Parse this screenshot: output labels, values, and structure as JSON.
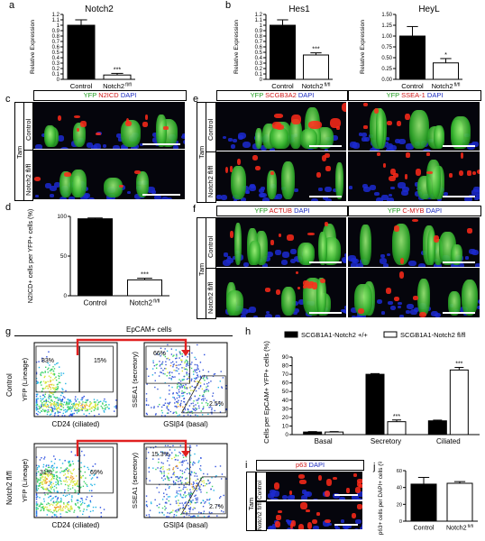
{
  "panels": {
    "a": {
      "letter": "a",
      "title": "Notch2",
      "ylabel": "Relative Expression"
    },
    "b": {
      "letter": "b",
      "title1": "Hes1",
      "title2": "HeyL",
      "ylabel": "Relative Expression"
    },
    "c": {
      "letter": "c",
      "stain": {
        "yfp": "YFP",
        "n2icd": "N2ICD",
        "dapi": "DAPI"
      },
      "tam": "Tam",
      "row1": "Control",
      "row2": "Notch2 fl/fl"
    },
    "d": {
      "letter": "d",
      "ylabel": "N2ICD+ cells per YFP+ cells (%)"
    },
    "e": {
      "letter": "e",
      "stain1": {
        "yfp": "YFP",
        "m": "SCGB3A2",
        "dapi": "DAPI"
      },
      "stain2": {
        "yfp": "YFP",
        "m": "SSEA-1",
        "dapi": "DAPI"
      },
      "tam": "Tam",
      "row1": "Control",
      "row2": "Notch2 fl/fl"
    },
    "f": {
      "letter": "f",
      "stain1": {
        "yfp": "YFP",
        "m": "ACTUB",
        "dapi": "DAPI"
      },
      "stain2": {
        "yfp": "YFP",
        "m": "C-MYB",
        "dapi": "DAPI"
      },
      "tam": "Tam",
      "row1": "Control",
      "row2": "Notch2 fl/fl"
    },
    "g": {
      "letter": "g",
      "header": "EpCAM+ cells",
      "row1": "Control",
      "row2": "Notch2 fl/fl",
      "x1": "CD24 (ciliated)",
      "y1": "YFP (Lineage)",
      "x2": "GSIβ4 (basal)",
      "y2": "SSEA1 (secretory)",
      "ctrl_pcts": {
        "a": "83%",
        "b": "15%",
        "c": "66%",
        "d": "2.5%"
      },
      "mut_pcts": {
        "a": "31%",
        "b": "69%",
        "c": "15.3%",
        "d": "2.7%"
      }
    },
    "h": {
      "letter": "h",
      "legend1": "SCGB1A1-Notch2 +/+",
      "legend2": "SCGB1A1-Notch2 fl/fl",
      "ylabel": "Cells per EpCAM+ YFP+ cells (%)"
    },
    "i": {
      "letter": "i",
      "stain": {
        "m": "p63",
        "dapi": "DAPI"
      },
      "tam": "Tam",
      "row1": "Control",
      "row2": "Notch2 fl/fl"
    },
    "j": {
      "letter": "j",
      "ylabel": "p63+ cells per DAPI+ cells (%)"
    }
  },
  "chart_data": [
    {
      "type": "bar",
      "id": "a",
      "title": "Notch2",
      "ylabel": "Relative Expression",
      "categories": [
        "Control",
        "Notch2 fl/fl"
      ],
      "values": [
        1.0,
        0.08
      ],
      "errors": [
        0.1,
        0.03
      ],
      "ylim": [
        0,
        1.2
      ],
      "yticks": [
        "0",
        "0.1",
        "0.2",
        "0.3",
        "0.4",
        "0.5",
        "0.6",
        "0.7",
        "0.8",
        "0.9",
        "1",
        "1.1",
        "1.2"
      ],
      "sig": [
        "",
        "***"
      ],
      "fill": [
        "#000000",
        "#ffffff"
      ]
    },
    {
      "type": "bar",
      "id": "b1",
      "title": "Hes1",
      "ylabel": "Relative Expression",
      "categories": [
        "Control",
        "Notch2 fl/fl"
      ],
      "values": [
        1.0,
        0.45
      ],
      "errors": [
        0.1,
        0.04
      ],
      "ylim": [
        0,
        1.2
      ],
      "yticks": [
        "0",
        "0.1",
        "0.2",
        "0.3",
        "0.4",
        "0.5",
        "0.6",
        "0.7",
        "0.8",
        "0.9",
        "1",
        "1.1",
        "1.2"
      ],
      "sig": [
        "",
        "***"
      ],
      "fill": [
        "#000000",
        "#ffffff"
      ]
    },
    {
      "type": "bar",
      "id": "b2",
      "title": "HeyL",
      "ylabel": "Relative Expression",
      "categories": [
        "Control",
        "Notch2 fl/fl"
      ],
      "values": [
        1.0,
        0.38
      ],
      "errors": [
        0.22,
        0.1
      ],
      "ylim": [
        0,
        1.5
      ],
      "yticks": [
        "0.00",
        "0.25",
        "0.50",
        "0.75",
        "1.00",
        "1.25",
        "1.50"
      ],
      "sig": [
        "",
        "*"
      ],
      "fill": [
        "#000000",
        "#ffffff"
      ]
    },
    {
      "type": "bar",
      "id": "d",
      "ylabel": "N2ICD+ cells per YFP+ cells (%)",
      "categories": [
        "Control",
        "Notch2 fl/fl"
      ],
      "values": [
        97,
        20
      ],
      "errors": [
        1,
        2
      ],
      "ylim": [
        0,
        100
      ],
      "yticks": [
        "0",
        "50",
        "100"
      ],
      "sig": [
        "",
        "***"
      ],
      "fill": [
        "#000000",
        "#ffffff"
      ]
    },
    {
      "type": "bar",
      "id": "h",
      "ylabel": "Cells per EpCAM+ YFP+ cells (%)",
      "categories": [
        "Basal",
        "Secretory",
        "Ciliated"
      ],
      "series": [
        {
          "name": "SCGB1A1-Notch2 +/+",
          "values": [
            3,
            70,
            16
          ],
          "errors": [
            0.5,
            0.8,
            0.8
          ]
        },
        {
          "name": "SCGB1A1-Notch2 fl/fl",
          "values": [
            3,
            15,
            75
          ],
          "errors": [
            0.5,
            2,
            3
          ]
        }
      ],
      "ylim": [
        0,
        90
      ],
      "yticks": [
        "0",
        "10",
        "20",
        "30",
        "40",
        "50",
        "60",
        "70",
        "80",
        "90"
      ],
      "sig": [
        "",
        "***",
        "***"
      ]
    },
    {
      "type": "bar",
      "id": "j",
      "ylabel": "p63+ cells per DAPI+ cells (%)",
      "categories": [
        "Control",
        "Notch2 fl/fl"
      ],
      "values": [
        44,
        45
      ],
      "errors": [
        8,
        2
      ],
      "ylim": [
        0,
        60
      ],
      "yticks": [
        "0",
        "20",
        "40",
        "60"
      ],
      "sig": [
        "",
        ""
      ],
      "fill": [
        "#000000",
        "#ffffff"
      ]
    }
  ]
}
